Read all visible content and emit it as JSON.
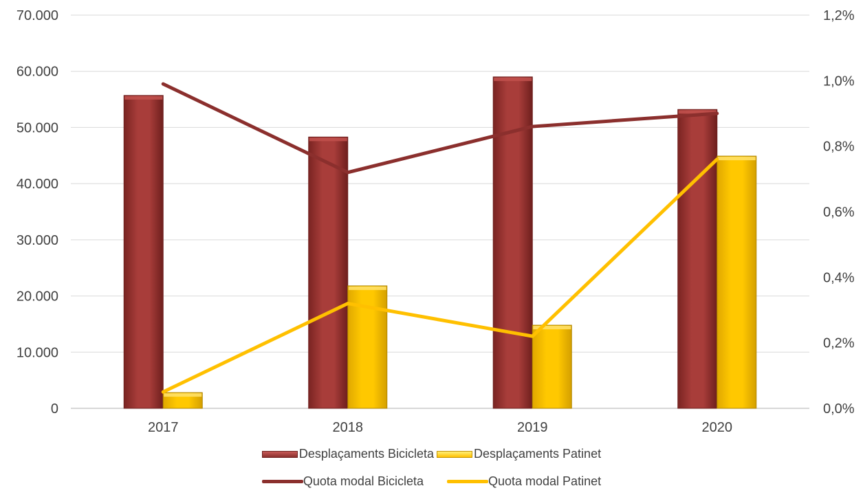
{
  "colors": {
    "bike": "#9b3432",
    "bike_light": "#c0504d",
    "bike_line": "#8b2f2d",
    "scooter": "#ffc000",
    "scooter_light": "#ffe066",
    "scooter_line": "#ffc000",
    "grid": "#d9d9d9",
    "text": "#404040"
  },
  "chart_data": {
    "type": "bar",
    "categories": [
      "2017",
      "2018",
      "2019",
      "2020"
    ],
    "series": [
      {
        "name": "Desplaçaments Bicicleta",
        "type": "bar",
        "axis": "left",
        "values": [
          55700,
          48300,
          59000,
          53200
        ]
      },
      {
        "name": "Desplaçaments Patinet",
        "type": "bar",
        "axis": "left",
        "values": [
          2800,
          21800,
          14800,
          44900
        ]
      },
      {
        "name": "Quota modal Bicicleta",
        "type": "line",
        "axis": "right",
        "values": [
          0.99,
          0.72,
          0.86,
          0.9
        ]
      },
      {
        "name": "Quota modal Patinet",
        "type": "line",
        "axis": "right",
        "values": [
          0.05,
          0.32,
          0.22,
          0.76
        ]
      }
    ],
    "y_left": {
      "lim": [
        0,
        70000
      ],
      "ticks": [
        0,
        10000,
        20000,
        30000,
        40000,
        50000,
        60000,
        70000
      ],
      "tick_labels": [
        "0",
        "10.000",
        "20.000",
        "30.000",
        "40.000",
        "50.000",
        "60.000",
        "70.000"
      ]
    },
    "y_right": {
      "lim": [
        0,
        1.2
      ],
      "ticks": [
        0,
        0.2,
        0.4,
        0.6,
        0.8,
        1.0,
        1.2
      ],
      "tick_labels": [
        "0,0%",
        "0,2%",
        "0,4%",
        "0,6%",
        "0,8%",
        "1,0%",
        "1,2%"
      ]
    },
    "grid": true,
    "legend_position": "bottom"
  }
}
